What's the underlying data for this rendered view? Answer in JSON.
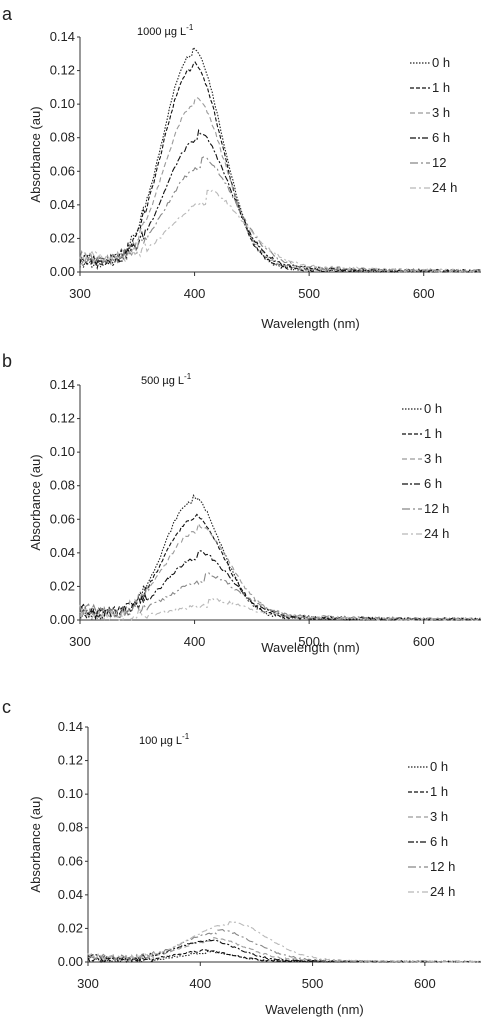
{
  "chart_data": [
    {
      "type": "line",
      "panel_letter": "a",
      "annotation": "1000 µg L",
      "annotation_sup": "-1",
      "xlabel": "Wavelength (nm)",
      "ylabel": "Absorbance (au)",
      "xlim": [
        300,
        650
      ],
      "ylim": [
        0,
        0.14
      ],
      "xticks": [
        "300",
        "400",
        "500",
        "600"
      ],
      "yticks": [
        "0.00",
        "0.02",
        "0.04",
        "0.06",
        "0.08",
        "0.10",
        "0.12",
        "0.14"
      ],
      "legend_position": "right",
      "series": [
        {
          "name": "0 h",
          "peak": 0.129,
          "center": 398,
          "width": 26,
          "baseline": 0.006,
          "tail": 0.004
        },
        {
          "name": "1 h",
          "peak": 0.12,
          "center": 398,
          "width": 26,
          "baseline": 0.007,
          "tail": 0.004
        },
        {
          "name": "3 h",
          "peak": 0.098,
          "center": 400,
          "width": 27,
          "baseline": 0.008,
          "tail": 0.005
        },
        {
          "name": "6 h",
          "peak": 0.077,
          "center": 402,
          "width": 28,
          "baseline": 0.009,
          "tail": 0.006
        },
        {
          "name": "12",
          "peak": 0.061,
          "center": 405,
          "width": 30,
          "baseline": 0.01,
          "tail": 0.007
        },
        {
          "name": "24 h",
          "peak": 0.04,
          "center": 410,
          "width": 32,
          "baseline": 0.011,
          "tail": 0.008
        }
      ]
    },
    {
      "type": "line",
      "panel_letter": "b",
      "annotation": "500 µg L",
      "annotation_sup": "-1",
      "xlabel": "Wavelength (nm)",
      "ylabel": "Absorbance (au)",
      "xlim": [
        300,
        650
      ],
      "ylim": [
        0,
        0.14
      ],
      "xticks": [
        "300",
        "400",
        "500",
        "600"
      ],
      "yticks": [
        "0.00",
        "0.02",
        "0.04",
        "0.06",
        "0.08",
        "0.10",
        "0.12",
        "0.14"
      ],
      "legend_position": "right",
      "series": [
        {
          "name": "0 h",
          "peak": 0.07,
          "center": 398,
          "width": 25,
          "baseline": 0.004,
          "tail": 0.003
        },
        {
          "name": "1 h",
          "peak": 0.059,
          "center": 399,
          "width": 26,
          "baseline": 0.005,
          "tail": 0.003
        },
        {
          "name": "3 h",
          "peak": 0.052,
          "center": 402,
          "width": 28,
          "baseline": 0.006,
          "tail": 0.004
        },
        {
          "name": "6 h",
          "peak": 0.036,
          "center": 403,
          "width": 28,
          "baseline": 0.006,
          "tail": 0.004
        },
        {
          "name": "12 h",
          "peak": 0.022,
          "center": 408,
          "width": 30,
          "baseline": 0.007,
          "tail": 0.005
        },
        {
          "name": "24 h",
          "peak": 0.008,
          "center": 412,
          "width": 30,
          "baseline": 0.005,
          "tail": 0.004
        }
      ]
    },
    {
      "type": "line",
      "panel_letter": "c",
      "annotation": "100 µg L",
      "annotation_sup": "-1",
      "xlabel": "Wavelength (nm)",
      "ylabel": "Absorbance (au)",
      "xlim": [
        300,
        650
      ],
      "ylim": [
        0,
        0.14
      ],
      "xticks": [
        "300",
        "400",
        "500",
        "600"
      ],
      "yticks": [
        "0.00",
        "0.02",
        "0.04",
        "0.06",
        "0.08",
        "0.10",
        "0.12",
        "0.14"
      ],
      "legend_position": "right",
      "series": [
        {
          "name": "0 h",
          "peak": 0.005,
          "center": 405,
          "width": 25,
          "baseline": 0.002,
          "tail": 0.001
        },
        {
          "name": "1 h",
          "peak": 0.006,
          "center": 400,
          "width": 25,
          "baseline": 0.002,
          "tail": 0.001
        },
        {
          "name": "3 h",
          "peak": 0.012,
          "center": 410,
          "width": 30,
          "baseline": 0.003,
          "tail": 0.002
        },
        {
          "name": "6 h",
          "peak": 0.012,
          "center": 405,
          "width": 28,
          "baseline": 0.003,
          "tail": 0.001
        },
        {
          "name": "12 h",
          "peak": 0.017,
          "center": 415,
          "width": 32,
          "baseline": 0.004,
          "tail": 0.002
        },
        {
          "name": "24 h",
          "peak": 0.022,
          "center": 425,
          "width": 34,
          "baseline": 0.004,
          "tail": 0.002
        }
      ]
    }
  ],
  "series_styles": [
    {
      "color": "#222222",
      "dash": "1.5,1.5"
    },
    {
      "color": "#111111",
      "dash": "4,2"
    },
    {
      "color": "#9a9a9a",
      "dash": "5,3"
    },
    {
      "color": "#111111",
      "dash": "6,2,2,2"
    },
    {
      "color": "#888888",
      "dash": "8,3,2,3"
    },
    {
      "color": "#b8b8b8",
      "dash": "6,3,2,3"
    }
  ]
}
